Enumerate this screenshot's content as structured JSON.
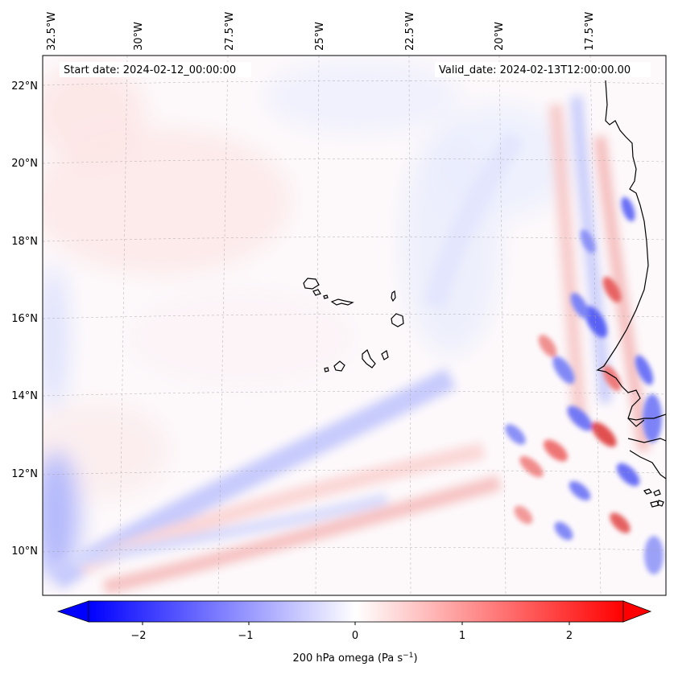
{
  "map": {
    "start_date": "Start date: 2024-02-12_00:00:00",
    "valid_date": "Valid_date: 2024-02-13T12:00:00.00",
    "lon_labels": [
      "32.5°W",
      "30°W",
      "27.5°W",
      "25°W",
      "22.5°W",
      "20°W",
      "17.5°W"
    ],
    "lat_labels": [
      "22°N",
      "20°N",
      "18°N",
      "16°N",
      "14°N",
      "12°N",
      "10°N"
    ],
    "colorbar": {
      "label_prefix": "200 hPa omega (Pa s",
      "label_exp": "−1",
      "label_suffix": ")",
      "ticks": [
        "−2",
        "−1",
        "0",
        "1",
        "2"
      ],
      "range": [
        -2.6,
        2.6
      ],
      "colors": {
        "negative": "#0000ff",
        "zero": "#ffffff",
        "positive": "#ff0000"
      }
    }
  }
}
